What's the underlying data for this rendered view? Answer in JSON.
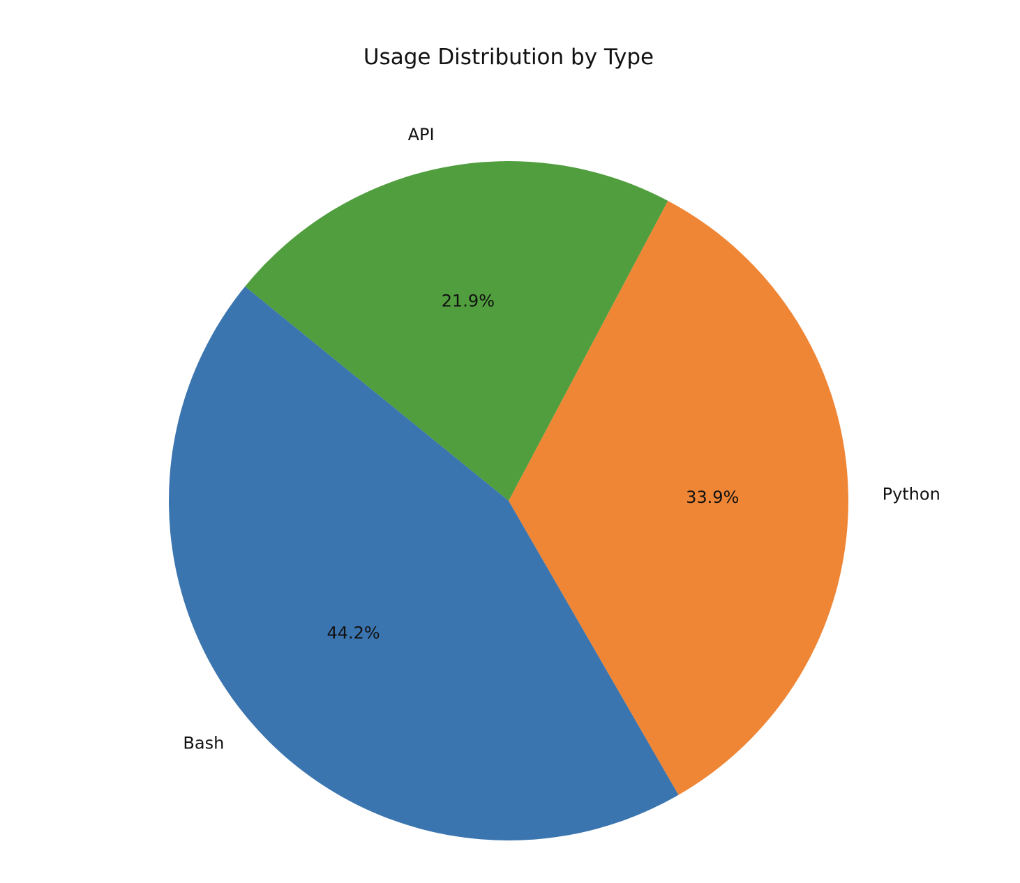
{
  "chart_data": {
    "type": "pie",
    "title": "Usage Distribution by Type",
    "slices": [
      {
        "label": "Python",
        "value": 33.9,
        "pct_label": "33.9%",
        "color": "#ef8636"
      },
      {
        "label": "API",
        "value": 21.9,
        "pct_label": "21.9%",
        "color": "#519e3e"
      },
      {
        "label": "Bash",
        "value": 44.2,
        "pct_label": "44.2%",
        "color": "#3b75af"
      }
    ],
    "start_angle_deg": -60,
    "direction": "counterclockwise"
  }
}
